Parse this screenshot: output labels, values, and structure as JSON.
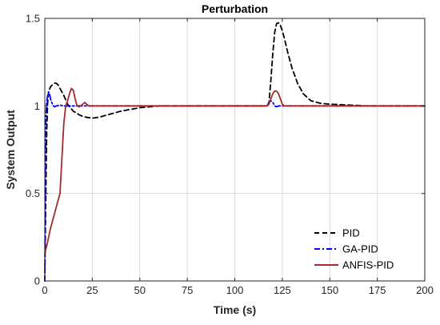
{
  "chart_data": {
    "type": "line",
    "title": "Perturbation",
    "xlabel": "Time (s)",
    "ylabel": "System Output",
    "xlim": [
      0,
      200
    ],
    "ylim": [
      0,
      1.5
    ],
    "x_ticks": [
      0,
      25,
      50,
      75,
      100,
      125,
      150,
      175,
      200
    ],
    "x_tick_labels": [
      "0",
      "25",
      "50",
      "75",
      "100",
      "125",
      "150",
      "175",
      "200"
    ],
    "y_ticks": [
      0,
      0.5,
      1,
      1.5
    ],
    "y_tick_labels": [
      "0",
      "0.5",
      "1",
      "1.5"
    ],
    "grid": true,
    "legend_position": "bottom-right",
    "legend": [
      "PID",
      "GA-PID",
      "ANFIS-PID"
    ],
    "series": [
      {
        "name": "PID",
        "color": "#000000",
        "style": "dashed",
        "x": [
          0,
          0.5,
          1,
          1.5,
          2,
          3,
          4,
          5,
          6,
          7,
          8,
          10,
          12,
          15,
          18,
          20,
          22,
          25,
          28,
          30,
          35,
          40,
          45,
          50,
          55,
          60,
          70,
          80,
          90,
          100,
          110,
          117,
          118,
          119,
          120,
          121,
          122,
          123,
          124,
          125,
          126,
          128,
          130,
          133,
          136,
          140,
          145,
          150,
          160,
          170,
          180,
          190,
          200
        ],
        "y": [
          0,
          0.45,
          0.85,
          1.02,
          1.08,
          1.11,
          1.12,
          1.13,
          1.13,
          1.12,
          1.1,
          1.06,
          1.01,
          0.97,
          0.95,
          0.94,
          0.935,
          0.93,
          0.935,
          0.94,
          0.955,
          0.97,
          0.98,
          0.99,
          0.995,
          1.0,
          1.0,
          1.0,
          1.0,
          1.0,
          1.0,
          1.0,
          1.02,
          1.15,
          1.3,
          1.42,
          1.47,
          1.475,
          1.46,
          1.43,
          1.39,
          1.3,
          1.22,
          1.13,
          1.07,
          1.03,
          1.015,
          1.01,
          1.005,
          1.0,
          1.0,
          1.0,
          1.0
        ]
      },
      {
        "name": "GA-PID",
        "color": "#0000ff",
        "style": "dashdot",
        "x": [
          0,
          0.3,
          0.6,
          1,
          1.5,
          2,
          2.5,
          3,
          4,
          5,
          6,
          8,
          10,
          20,
          50,
          100,
          117,
          118,
          119,
          120,
          121,
          122,
          123,
          125,
          130,
          150,
          200
        ],
        "y": [
          0,
          0.6,
          0.95,
          1.02,
          1.06,
          1.08,
          1.07,
          1.04,
          1.01,
          0.995,
          1.0,
          1.005,
          1.0,
          1.0,
          1.0,
          1.0,
          1.0,
          1.02,
          1.03,
          1.02,
          1.0,
          0.995,
          1.0,
          1.0,
          1.0,
          1.0,
          1.0
        ]
      },
      {
        "name": "ANFIS-PID",
        "color": "#a52a2a",
        "style": "solid",
        "x": [
          0,
          0.5,
          1,
          2,
          3,
          4,
          5,
          6,
          7,
          8,
          9,
          10,
          11,
          12,
          13,
          14,
          15,
          16,
          17,
          18,
          19,
          20,
          21,
          22,
          23,
          25,
          30,
          50,
          100,
          117,
          118,
          119,
          120,
          121,
          122,
          123,
          124,
          125,
          126,
          128,
          130,
          150,
          200
        ],
        "y": [
          0.15,
          0.18,
          0.2,
          0.25,
          0.3,
          0.34,
          0.38,
          0.42,
          0.46,
          0.5,
          0.7,
          0.9,
          1.0,
          1.03,
          1.07,
          1.1,
          1.09,
          1.04,
          1.0,
          0.995,
          1.0,
          1.01,
          1.02,
          1.01,
          1.0,
          1.0,
          1.0,
          1.0,
          1.0,
          1.0,
          1.01,
          1.04,
          1.07,
          1.085,
          1.085,
          1.07,
          1.04,
          1.01,
          1.0,
          1.0,
          1.0,
          1.0,
          1.0
        ]
      }
    ]
  }
}
